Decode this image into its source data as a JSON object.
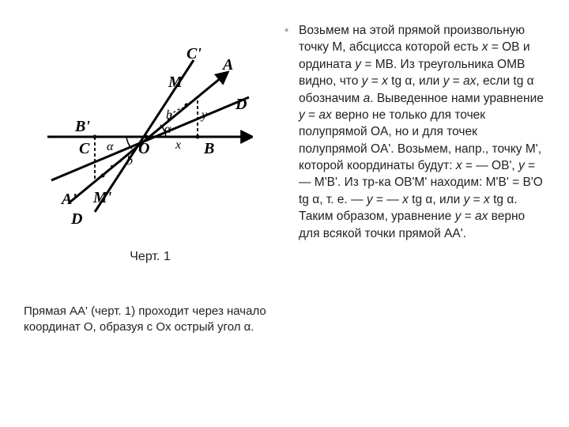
{
  "figure": {
    "caption": "Черт. 1",
    "labels": {
      "Cprime": "C'",
      "A": "A",
      "M": "M",
      "D_top": "D",
      "Bprime": "B'",
      "C": "C",
      "O": "O",
      "B": "B",
      "Aprime": "A'",
      "Mprime": "M'",
      "D_bottom": "D",
      "y": "y",
      "x": "x",
      "b1": "b",
      "b2": "b",
      "alpha1": "α",
      "alpha2": "α"
    },
    "stroke": "#000000",
    "dash": "4,3"
  },
  "left_text": "Прямая AA' (черт. 1) проходит через начало координат O, образуя с Ox острый угол α.",
  "bullet_marker": "•",
  "right_text_html": "Возьмем на этой прямой произвольную точку M, абсцисса которой есть <i>x</i> = OB и ордината <i>y</i> = MB. Из треугольника OMB видно, что <i>y</i> = <i>x</i> tg α, или <i>y</i> = <i>ax</i>, если tg α обозначим <i>a</i>. Выведенное нами уравнение <i>y</i> = <i>ax</i> верно не только для точек полупрямой OA, но и для точек полупрямой OA'. Возьмем, напр., точку M', которой координаты будут: <i>x</i> = — OB', <i>y</i> = — M'B'. Из тр-ка OB'M' находим: M'B' = B'O tg α, т. е. — <i>y</i> = — <i>x</i> tg α, или <i>y</i> = <i>x</i> tg α. Таким образом, уравнение <i>y</i> = <i>ax</i> верно для всякой точки прямой AA'."
}
